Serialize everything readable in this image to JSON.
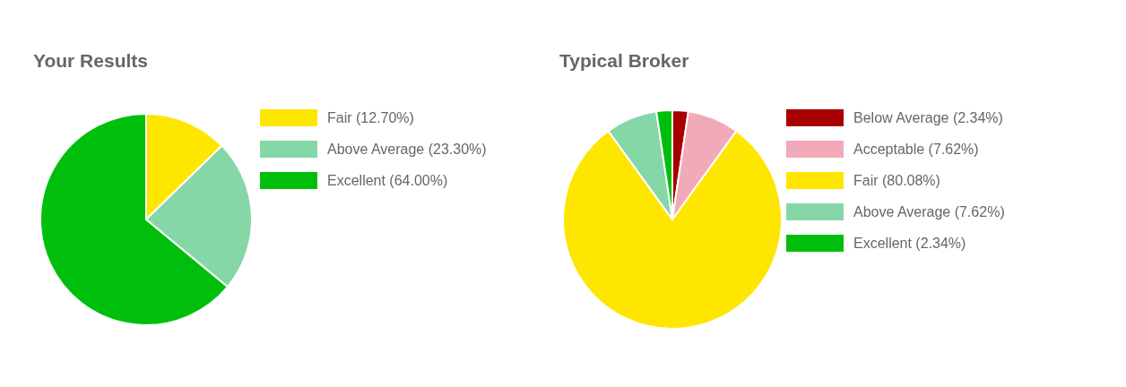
{
  "chart_data": [
    {
      "type": "pie",
      "title": "Your Results",
      "categories": [
        "Fair (12.70%)",
        "Above Average (23.30%)",
        "Excellent (64.00%)"
      ],
      "values": [
        12.7,
        23.3,
        64.0
      ],
      "colors": [
        "#ffe600",
        "#85d7a8",
        "#00bf0c"
      ],
      "legend": "right"
    },
    {
      "type": "pie",
      "title": "Typical Broker",
      "categories": [
        "Below Average (2.34%)",
        "Acceptable (7.62%)",
        "Fair (80.08%)",
        "Above Average (7.62%)",
        "Excellent (2.34%)"
      ],
      "values": [
        2.34,
        7.62,
        80.08,
        7.62,
        2.34
      ],
      "colors": [
        "#a80000",
        "#f2a9b8",
        "#ffe600",
        "#85d7a8",
        "#00bf0c"
      ],
      "legend": "right"
    }
  ]
}
